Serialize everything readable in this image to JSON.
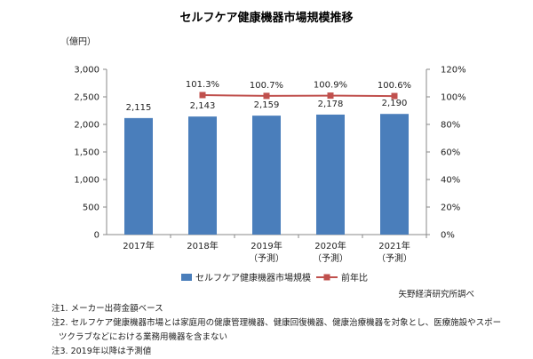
{
  "chart_data": {
    "type": "bar",
    "title": "セルフケア健康機器市場規模推移",
    "y_left_unit": "（億円）",
    "categories": [
      "2017年",
      "2018年",
      "2019年",
      "2020年",
      "2021年"
    ],
    "category_sub": [
      "",
      "",
      "（予測）",
      "（予測）",
      "（予測）"
    ],
    "series": [
      {
        "name": "セルフケア健康機器市場規模",
        "type": "bar",
        "color": "#4a7ebb",
        "values": [
          2115,
          2143,
          2159,
          2178,
          2190
        ],
        "labels": [
          "2,115",
          "2,143",
          "2,159",
          "2,178",
          "2,190"
        ]
      },
      {
        "name": "前年比",
        "type": "line",
        "axis": "right",
        "color": "#c0504d",
        "values": [
          null,
          101.3,
          100.7,
          100.9,
          100.6
        ],
        "labels": [
          "",
          "101.3%",
          "100.7%",
          "100.9%",
          "100.6%"
        ]
      }
    ],
    "y_left": {
      "min": 0,
      "max": 3000,
      "ticks": [
        "0",
        "500",
        "1,000",
        "1,500",
        "2,000",
        "2,500",
        "3,000"
      ]
    },
    "y_right": {
      "min": 0,
      "max": 120,
      "ticks": [
        "0%",
        "20%",
        "40%",
        "60%",
        "80%",
        "100%",
        "120%"
      ]
    },
    "grid": false,
    "legend_position": "bottom"
  },
  "source": "矢野経済研究所調べ",
  "notes": [
    "注1. メーカー出荷金額ベース",
    "注2. セルフケア健康機器市場とは家庭用の健康管理機器、健康回復機器、健康治療機器を対象とし、医療施設やスポー",
    "ツクラブなどにおける業務用機器を含まない",
    "注3. 2019年以降は予測値"
  ]
}
